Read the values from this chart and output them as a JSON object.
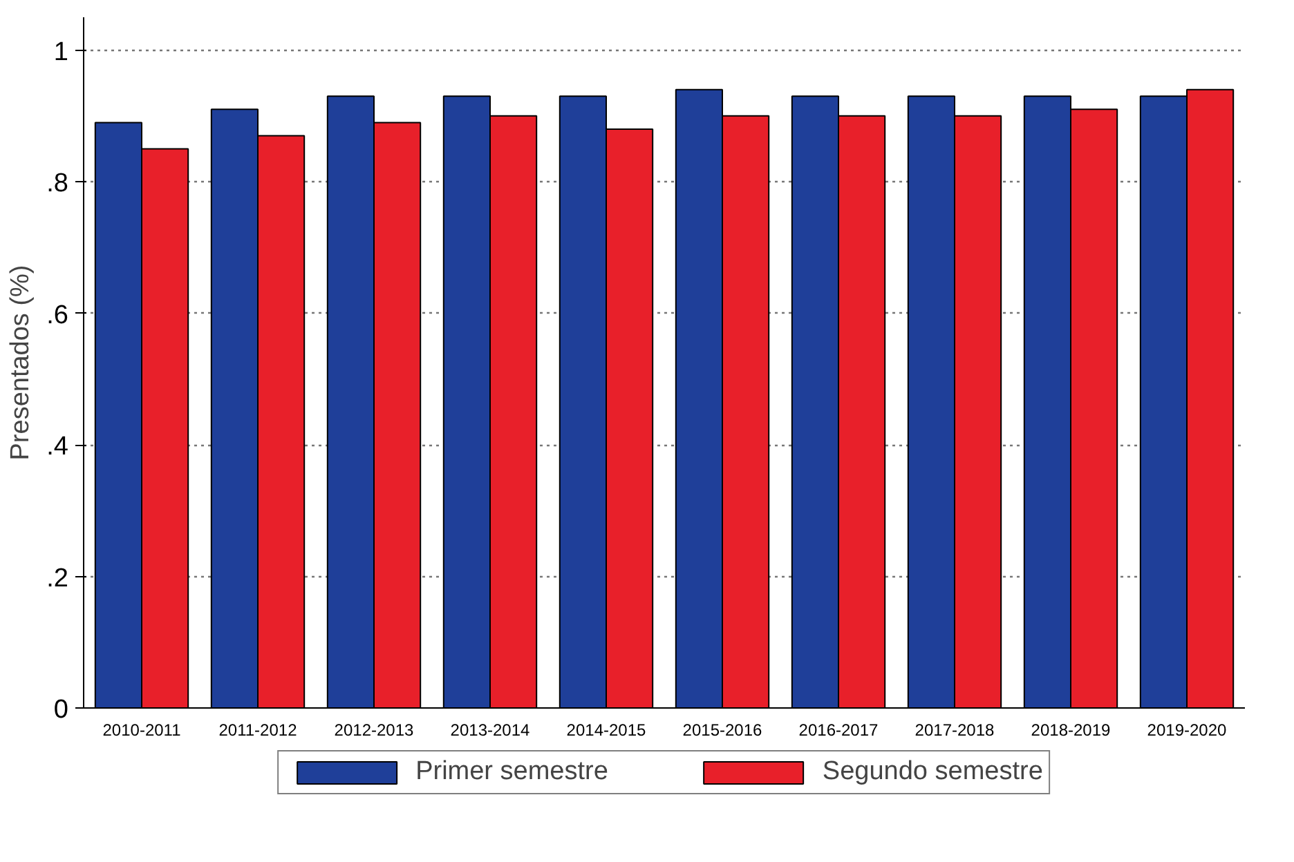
{
  "chart_data": {
    "type": "bar",
    "ylabel": "Presentados (%)",
    "categories": [
      "2010-2011",
      "2011-2012",
      "2012-2013",
      "2013-2014",
      "2014-2015",
      "2015-2016",
      "2016-2017",
      "2017-2018",
      "2018-2019",
      "2019-2020"
    ],
    "series": [
      {
        "name": "Primer semestre",
        "color": "#1f3f99",
        "values": [
          0.89,
          0.91,
          0.93,
          0.93,
          0.93,
          0.94,
          0.93,
          0.93,
          0.93,
          0.93
        ]
      },
      {
        "name": "Segundo semestre",
        "color": "#e8202a",
        "values": [
          0.85,
          0.87,
          0.89,
          0.9,
          0.88,
          0.9,
          0.9,
          0.9,
          0.91,
          0.94
        ]
      }
    ],
    "ylim": [
      0,
      1.05
    ],
    "yticks": [
      0,
      {
        "value": 0.2,
        "label": ".2"
      },
      {
        "value": 0.4,
        "label": ".4"
      },
      {
        "value": 0.6,
        "label": ".6"
      },
      {
        "value": 0.8,
        "label": ".8"
      },
      1
    ],
    "grid": "y",
    "legend": "bottom"
  }
}
